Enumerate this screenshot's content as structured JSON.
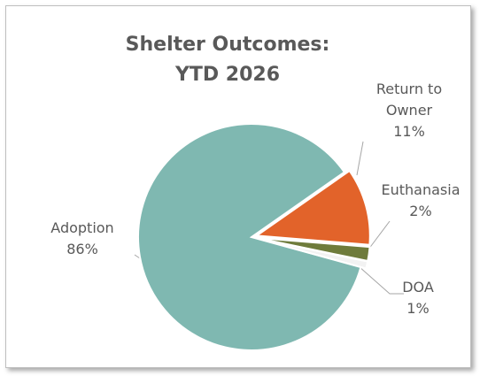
{
  "chart_data": {
    "type": "pie",
    "title": "Shelter Outcomes: YTD 2026",
    "categories": [
      "Adoption",
      "Return to Owner",
      "Euthanasia",
      "DOA"
    ],
    "values": [
      86,
      11,
      2,
      1
    ],
    "value_labels": [
      "86%",
      "11%",
      "2%",
      "1%"
    ],
    "colors": [
      "#7fb8b1",
      "#e2632a",
      "#6e7b3b",
      "#f2f2f2"
    ]
  }
}
